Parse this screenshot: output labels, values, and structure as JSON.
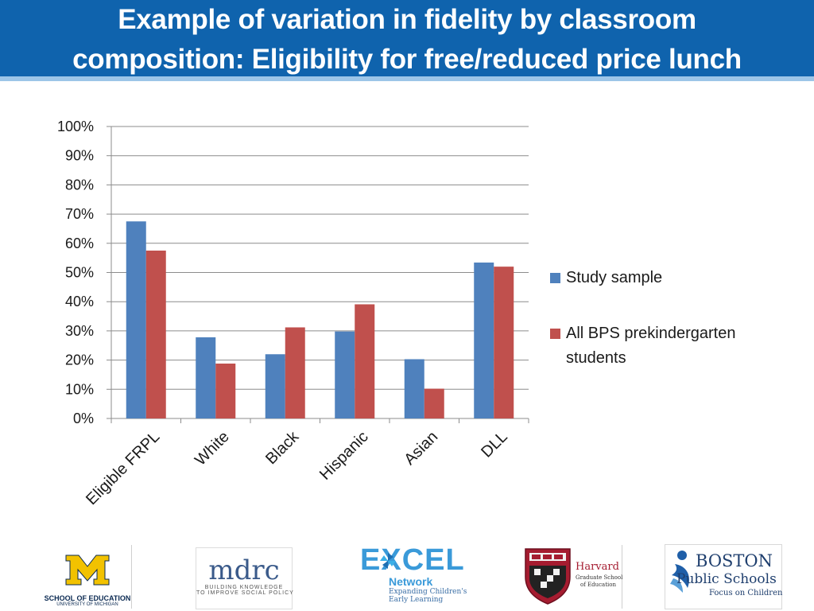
{
  "header": {
    "title_line1": "Example of variation in fidelity by classroom",
    "title_line2": "composition: Eligibility for free/reduced price lunch"
  },
  "colors": {
    "header_bg": "#0f63ad",
    "header_rule": "#9cc5e8",
    "study_sample": "#4f81bd",
    "all_bps": "#c0504d"
  },
  "chart_data": {
    "type": "bar",
    "categories": [
      "Eligible FRPL",
      "White",
      "Black",
      "Hispanic",
      "Asian",
      "DLL"
    ],
    "series": [
      {
        "name": "Study sample",
        "values": [
          67.5,
          27.8,
          22.0,
          29.8,
          20.3,
          53.4
        ],
        "color": "#4f81bd"
      },
      {
        "name": "All BPS prekindergarten students",
        "values": [
          57.5,
          18.8,
          31.2,
          39.1,
          10.2,
          52.0
        ],
        "color": "#c0504d"
      }
    ],
    "ylim": [
      0,
      100
    ],
    "y_ticks": [
      "0%",
      "10%",
      "20%",
      "30%",
      "40%",
      "50%",
      "60%",
      "70%",
      "80%",
      "90%",
      "100%"
    ],
    "grid": true,
    "legend_position": "right"
  },
  "legend": {
    "series1": "Study sample",
    "series2_line1": "All BPS prekindergarten",
    "series2_line2": "students"
  },
  "logos": {
    "umich_line1": "SCHOOL OF EDUCATION",
    "umich_line2": "UNIVERSITY OF MICHIGAN",
    "mdrc_name": "mdrc",
    "mdrc_tagline1": "BUILDING KNOWLEDGE",
    "mdrc_tagline2": "TO IMPROVE SOCIAL POLICY",
    "excel_name": "EXCEL",
    "excel_sub": "Network",
    "excel_tagline1": "Expanding Children's",
    "excel_tagline2": "Early Learning",
    "harvard_name": "Harvard",
    "harvard_sub1": "Graduate School",
    "harvard_sub2": "of Education",
    "bps_name1": "BOSTON",
    "bps_name2": "Public Schools",
    "bps_tagline": "Focus on Children"
  }
}
